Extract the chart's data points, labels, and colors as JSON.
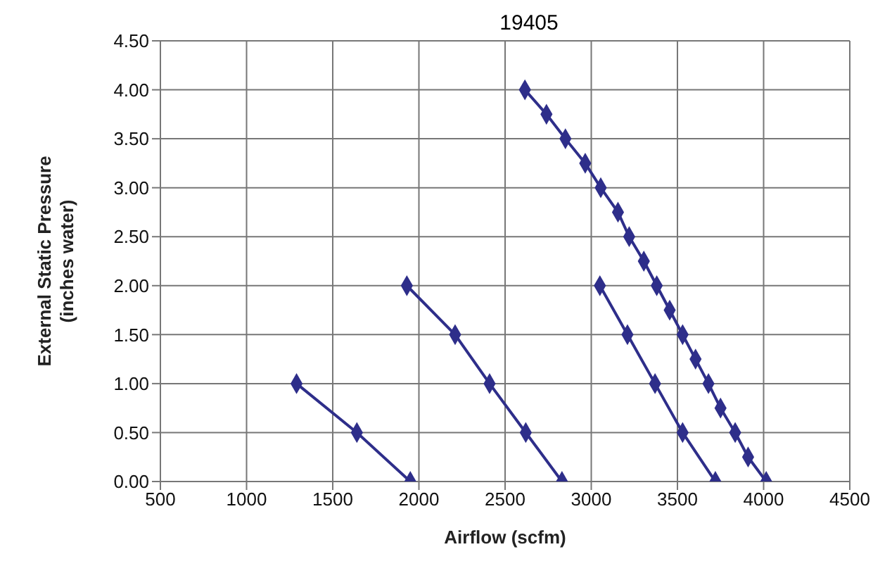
{
  "chart_data": {
    "type": "line",
    "title": "19405",
    "xlabel": "Airflow (scfm)",
    "ylabel": "External Static Pressure\n(inches water)",
    "xlim": [
      500,
      4500
    ],
    "xticks": [
      500,
      1000,
      1500,
      2000,
      2500,
      3000,
      3500,
      4000,
      4500
    ],
    "ylim": [
      0,
      4.5
    ],
    "yticks": [
      {
        "value": 0,
        "label": "0.00"
      },
      {
        "value": 0.5,
        "label": "0.50"
      },
      {
        "value": 1,
        "label": "1.00"
      },
      {
        "value": 1.5,
        "label": "1.50"
      },
      {
        "value": 2,
        "label": "2.00"
      },
      {
        "value": 2.5,
        "label": "2.50"
      },
      {
        "value": 3,
        "label": "3.00"
      },
      {
        "value": 3.5,
        "label": "3.50"
      },
      {
        "value": 4,
        "label": "4.00"
      },
      {
        "value": 4.5,
        "label": "4.50"
      }
    ],
    "grid": true,
    "legend": false,
    "marker": "diamond",
    "line_style": "solid",
    "series": [
      {
        "color": "#2e2e8a",
        "x": [
          1290,
          1640,
          1950
        ],
        "values": [
          1,
          0.5,
          0
        ]
      },
      {
        "color": "#2e2e8a",
        "x": [
          1930,
          2210,
          2410,
          2620,
          2830
        ],
        "values": [
          2,
          1.5,
          1,
          0.5,
          0
        ]
      },
      {
        "color": "#2e2e8a",
        "x": [
          3050,
          3210,
          3370,
          3530,
          3720
        ],
        "values": [
          2,
          1.5,
          1,
          0.5,
          0
        ]
      },
      {
        "color": "#2e2e8a",
        "x": [
          2615,
          2740,
          2850,
          2965,
          3055,
          3155,
          3220,
          3305,
          3380,
          3455,
          3530,
          3605,
          3680,
          3750,
          3835,
          3910,
          4015
        ],
        "values": [
          4,
          3.75,
          3.5,
          3.25,
          3,
          2.75,
          2.5,
          2.25,
          2,
          1.75,
          1.5,
          1.25,
          1,
          0.75,
          0.5,
          0.25,
          0
        ]
      }
    ]
  }
}
